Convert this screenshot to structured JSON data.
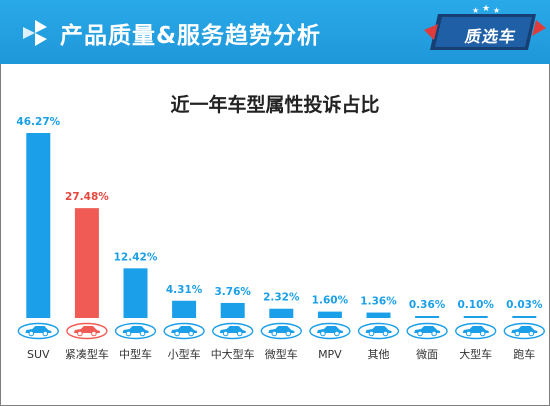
{
  "header": {
    "title": "产品质量&服务趋势分析",
    "badge": "质选车",
    "colors": {
      "header_bg": "#1f97d9",
      "badge_bg": "#1a5f9f",
      "badge_accent": "#e03b3b"
    }
  },
  "chart_data": {
    "type": "bar",
    "title": "近一年车型属性投诉占比",
    "categories": [
      "SUV",
      "紧凑型车",
      "中型车",
      "小型车",
      "中大型车",
      "微型车",
      "MPV",
      "其他",
      "微面",
      "大型车",
      "跑车"
    ],
    "values": [
      46.27,
      27.48,
      12.42,
      4.31,
      3.76,
      2.32,
      1.6,
      1.36,
      0.36,
      0.1,
      0.03
    ],
    "value_labels": [
      "46.27%",
      "27.48%",
      "12.42%",
      "4.31%",
      "3.76%",
      "2.32%",
      "1.60%",
      "1.36%",
      "0.36%",
      "0.10%",
      "0.03%"
    ],
    "highlight_index": 1,
    "colors": {
      "bar": "#1a9fe8",
      "highlight": "#f15b55",
      "label": "#1a9fe8",
      "highlight_label": "#e8463f"
    },
    "grid": false,
    "ylim": [
      0,
      46.27
    ]
  }
}
